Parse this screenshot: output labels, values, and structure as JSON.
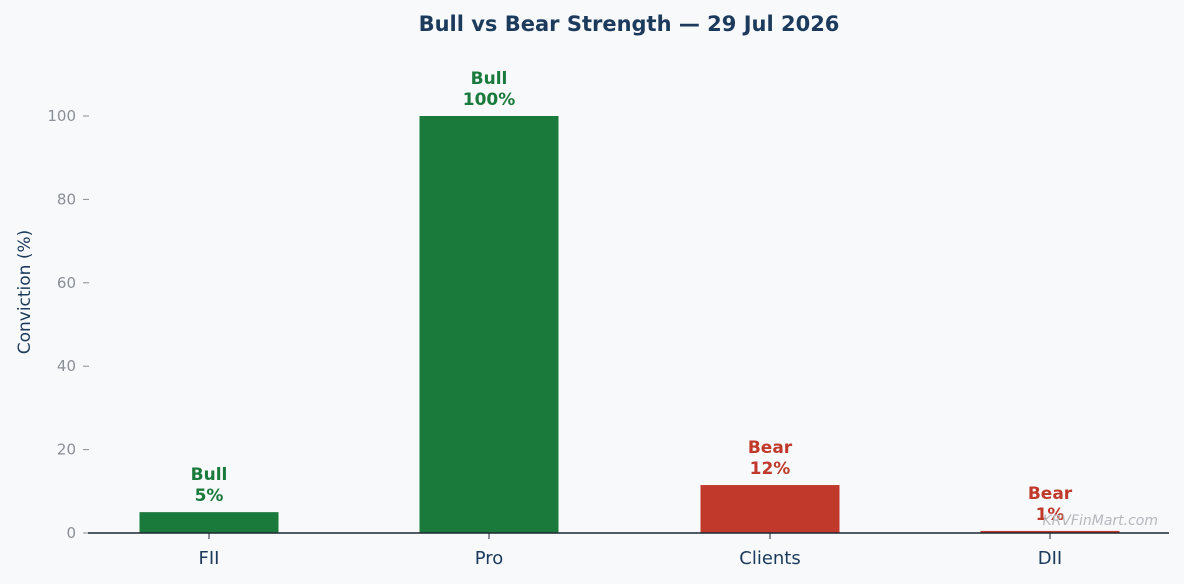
{
  "chart_data": {
    "type": "bar",
    "title": "Bull vs Bear Strength — 29 Jul 2026",
    "xlabel": "",
    "ylabel": "Conviction (%)",
    "ylim": [
      0,
      110
    ],
    "yticks": [
      0,
      20,
      40,
      60,
      80,
      100
    ],
    "grid": false,
    "categories": [
      "FII",
      "Pro",
      "Clients",
      "DII"
    ],
    "values": [
      5,
      100,
      11.5,
      0.5
    ],
    "labels": [
      {
        "stance": "Bull",
        "value_text": "5%"
      },
      {
        "stance": "Bull",
        "value_text": "100%"
      },
      {
        "stance": "Bear",
        "value_text": "12%"
      },
      {
        "stance": "Bear",
        "value_text": "1%"
      }
    ],
    "colors": {
      "Bull": "#1a7a3c",
      "Bear": "#c0392b",
      "title": "#1c3a5c",
      "axis": "#1c2733",
      "tick": "#8a8f96"
    },
    "watermark": "KRVFinMart.com"
  }
}
